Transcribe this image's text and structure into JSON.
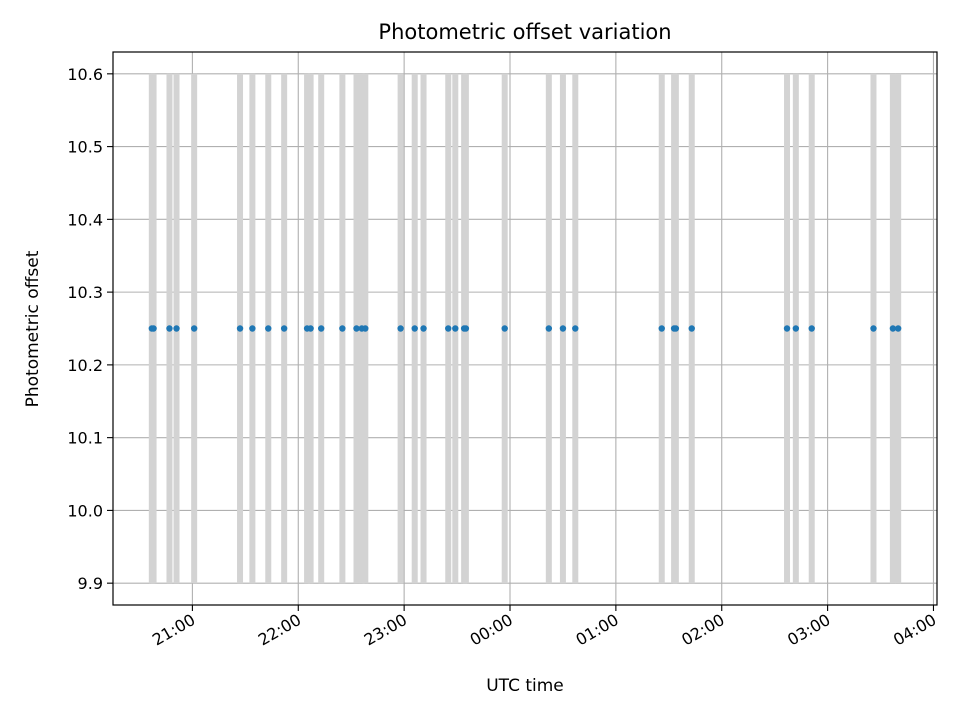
{
  "chart_data": {
    "type": "scatter",
    "title": "Photometric offset variation",
    "xlabel": "UTC time",
    "ylabel": "Photometric offset",
    "x_axis": {
      "kind": "time",
      "min": "20:15",
      "max": "04:02",
      "day_rollover_after": "23:59",
      "ticks": [
        "21:00",
        "22:00",
        "23:00",
        "00:00",
        "01:00",
        "02:00",
        "03:00",
        "04:00"
      ],
      "tick_rotation": -30
    },
    "y_axis": {
      "min": 9.87,
      "max": 10.63,
      "ticks": [
        "9.9",
        "10.0",
        "10.1",
        "10.2",
        "10.3",
        "10.4",
        "10.5",
        "10.6"
      ]
    },
    "grid": true,
    "colors": {
      "points": "#1f77b4",
      "bars": "#d3d3d3",
      "grid": "#b0b0b0",
      "axes": "#000000"
    },
    "bar_range": [
      9.9,
      10.6
    ],
    "series": [
      {
        "name": "",
        "points": [
          {
            "t": "20:37",
            "y": 10.25
          },
          {
            "t": "20:38",
            "y": 10.25
          },
          {
            "t": "20:47",
            "y": 10.25
          },
          {
            "t": "20:51",
            "y": 10.25
          },
          {
            "t": "21:01",
            "y": 10.25
          },
          {
            "t": "21:27",
            "y": 10.25
          },
          {
            "t": "21:34",
            "y": 10.25
          },
          {
            "t": "21:43",
            "y": 10.25
          },
          {
            "t": "21:52",
            "y": 10.25
          },
          {
            "t": "22:05",
            "y": 10.25
          },
          {
            "t": "22:07",
            "y": 10.25
          },
          {
            "t": "22:13",
            "y": 10.25
          },
          {
            "t": "22:25",
            "y": 10.25
          },
          {
            "t": "22:33",
            "y": 10.25
          },
          {
            "t": "22:36",
            "y": 10.25
          },
          {
            "t": "22:38",
            "y": 10.25
          },
          {
            "t": "22:58",
            "y": 10.25
          },
          {
            "t": "23:06",
            "y": 10.25
          },
          {
            "t": "23:11",
            "y": 10.25
          },
          {
            "t": "23:25",
            "y": 10.25
          },
          {
            "t": "23:29",
            "y": 10.25
          },
          {
            "t": "23:34",
            "y": 10.25
          },
          {
            "t": "23:35",
            "y": 10.25
          },
          {
            "t": "23:57",
            "y": 10.25
          },
          {
            "t": "00:22",
            "y": 10.25
          },
          {
            "t": "00:30",
            "y": 10.25
          },
          {
            "t": "00:37",
            "y": 10.25
          },
          {
            "t": "01:26",
            "y": 10.25
          },
          {
            "t": "01:33",
            "y": 10.25
          },
          {
            "t": "01:34",
            "y": 10.25
          },
          {
            "t": "01:43",
            "y": 10.25
          },
          {
            "t": "02:37",
            "y": 10.25
          },
          {
            "t": "02:42",
            "y": 10.25
          },
          {
            "t": "02:51",
            "y": 10.25
          },
          {
            "t": "03:26",
            "y": 10.25
          },
          {
            "t": "03:37",
            "y": 10.25
          },
          {
            "t": "03:40",
            "y": 10.25
          }
        ]
      }
    ]
  }
}
